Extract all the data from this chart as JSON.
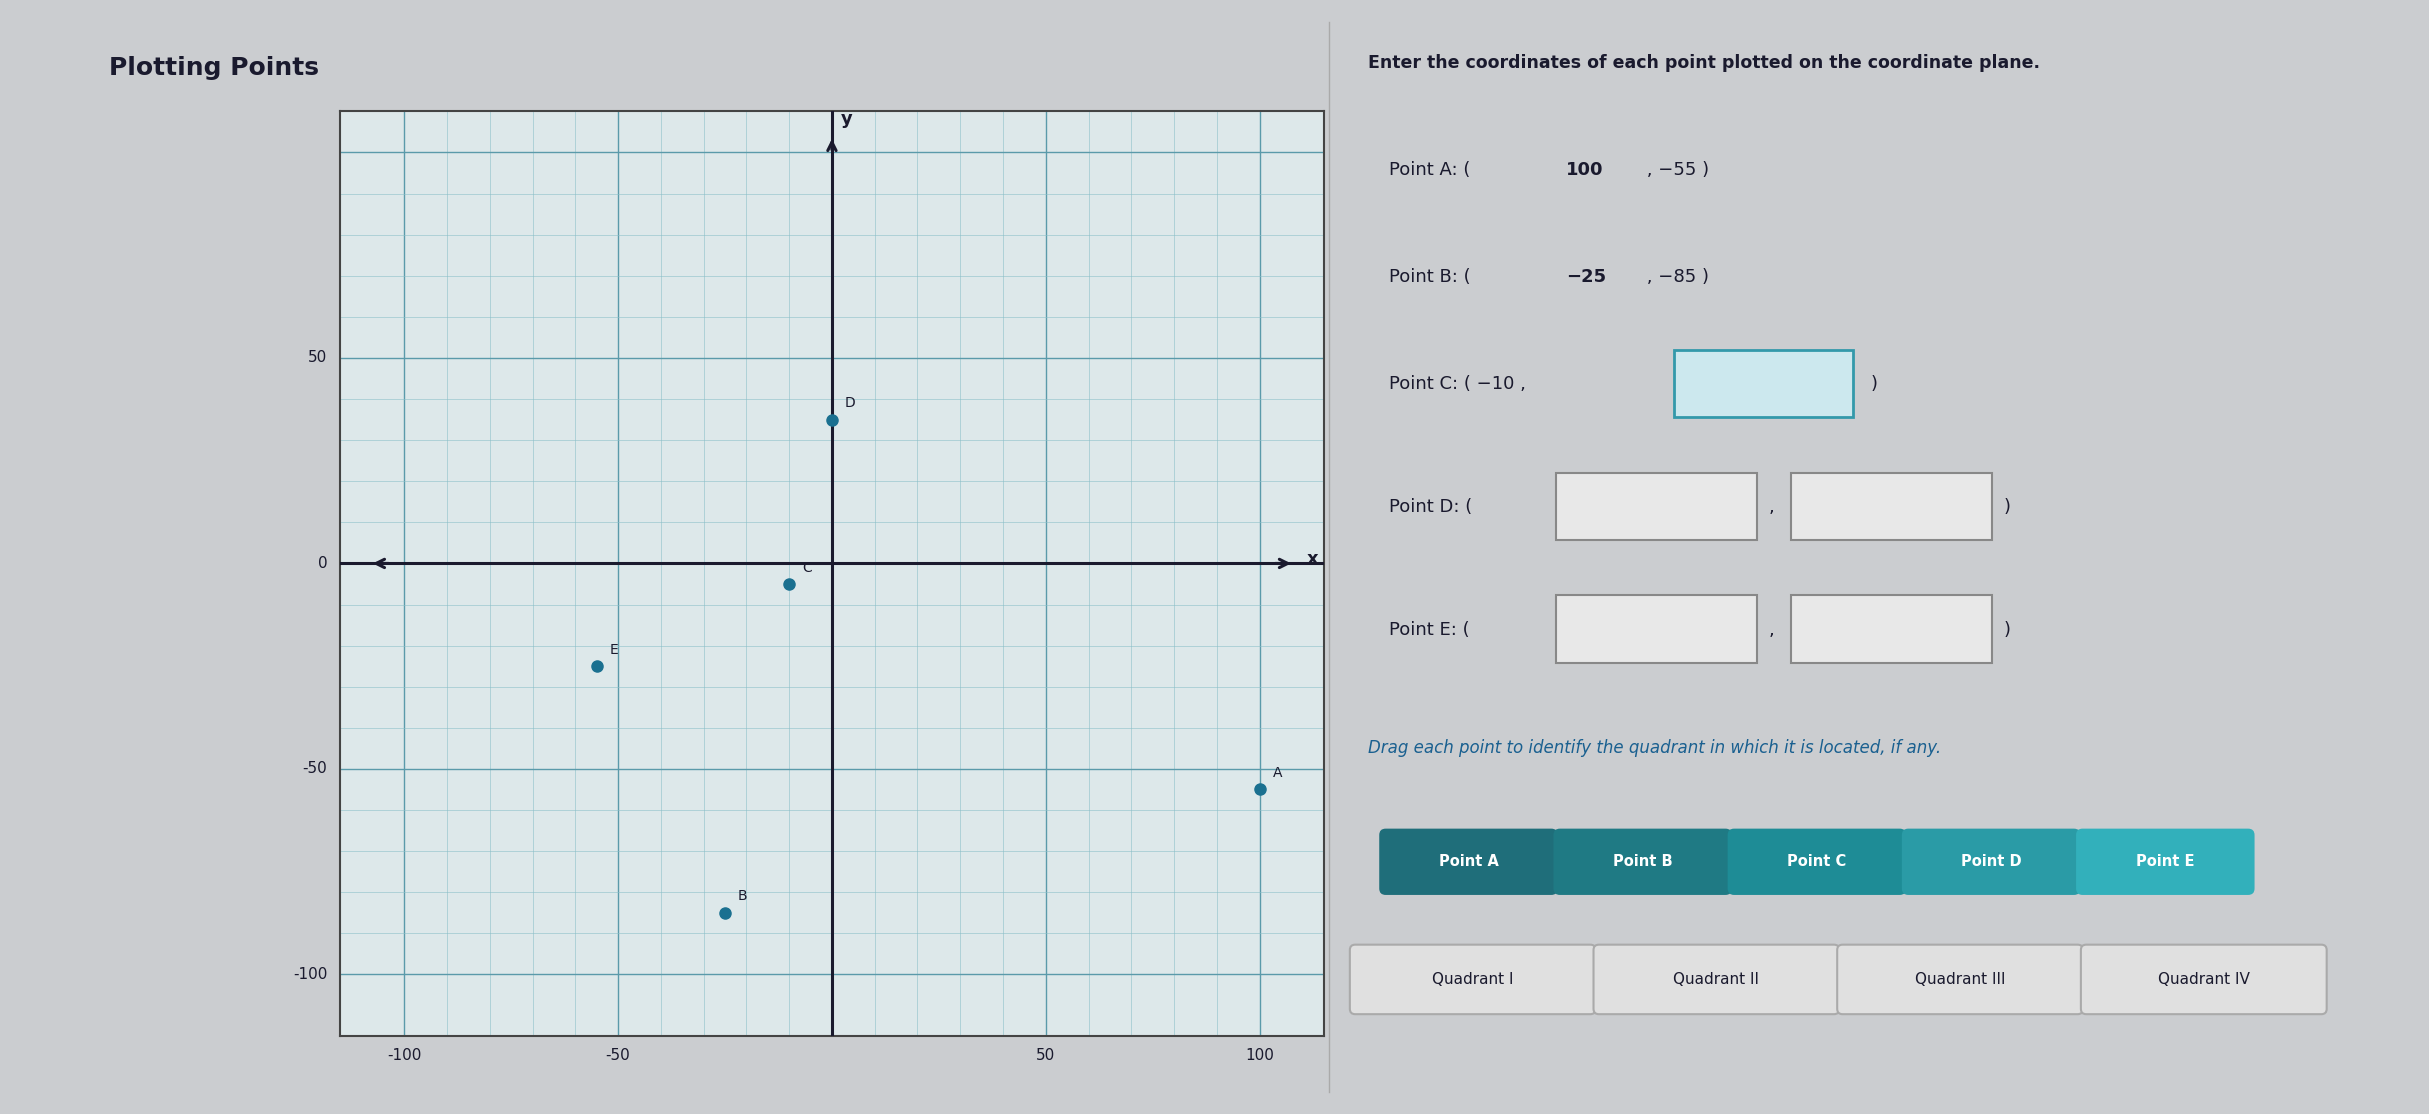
{
  "title": "Plotting Points",
  "bg_color": "#cbcdd0",
  "graph_bg": "#dde8ea",
  "grid_color_minor": "#8bbfc8",
  "grid_color_major": "#5a9aaa",
  "axis_color": "#1a1a2e",
  "point_color": "#1a7090",
  "points": {
    "A": [
      100,
      -55
    ],
    "B": [
      -25,
      -85
    ],
    "C": [
      -10,
      -5
    ],
    "D": [
      0,
      35
    ],
    "E": [
      -55,
      -25
    ]
  },
  "xlim": [
    -115,
    115
  ],
  "ylim": [
    -115,
    110
  ],
  "right_bg": "#e8e8e8",
  "right_title": "Enter the coordinates of each point plotted on the coordinate plane.",
  "drag_text": "Drag each point to identify the quadrant in which it is located, if any.",
  "quadrants": [
    "Quadrant I",
    "Quadrant II",
    "Quadrant III",
    "Quadrant IV"
  ],
  "point_buttons": [
    "Point A",
    "Point B",
    "Point C",
    "Point D",
    "Point E"
  ],
  "btn_color_A": "#1f6e7a",
  "btn_color_B": "#1f7a84",
  "btn_color_C": "#1e8c96",
  "btn_color_D": "#2a9ba6",
  "btn_color_E": "#32b0bb",
  "quadrant_btn_color": "#e0e0e0",
  "text_color": "#1a1a2e",
  "drag_color": "#1a6090"
}
